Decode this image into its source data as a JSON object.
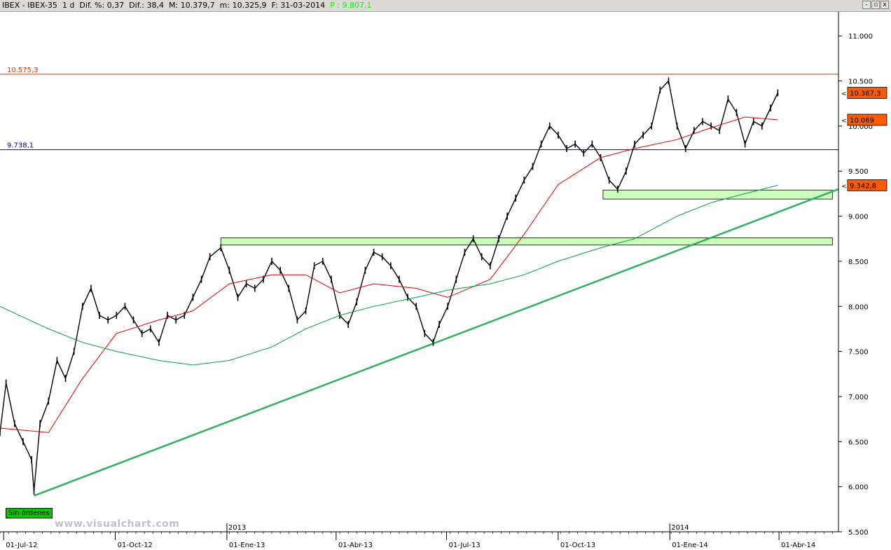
{
  "header": {
    "symbol": "IBEX - IBEX-35",
    "period": "1 d",
    "dif_pct": "Dif. %: 0,37",
    "dif": "Dif.: 38,4",
    "max": "M: 10.379,7",
    "min": "m: 10.325,9",
    "date": "F: 31-03-2014",
    "p": "P : 9.807,1",
    "buttons": [
      "-",
      "▫",
      "x"
    ]
  },
  "badge": "Sin órdenes",
  "watermark": "www.visualchart.com",
  "colors": {
    "resistance": "#e03000",
    "support": "#000080",
    "ma_short": "#e00000",
    "ma_long": "#00a040",
    "trendline": "#30b060",
    "zone_fill": "#ccffbb",
    "price_box": "#ff5a00"
  },
  "chart_data": {
    "type": "line",
    "title": "",
    "ylim": [
      5500,
      11250
    ],
    "y_ticks": [
      5500,
      6000,
      6500,
      7000,
      7500,
      8000,
      8500,
      9000,
      9500,
      10000,
      10500,
      11000
    ],
    "y_tick_labels": [
      "5.500",
      "6.000",
      "6.500",
      "7.000",
      "7.500",
      "8.000",
      "8.500",
      "9.000",
      "9.500",
      "10.000",
      "10.500",
      "11.000"
    ],
    "x_ticks": [
      "01-Jul-12",
      "01-Oct-12",
      "01-Ene-13",
      "01-Abr-13",
      "01-Jul-13",
      "01-Oct-13",
      "01-Ene-14",
      "01-Abr-14"
    ],
    "x_dates": [
      "2012-07-01",
      "2012-10-01",
      "2013-01-01",
      "2013-04-01",
      "2013-07-01",
      "2013-10-01",
      "2014-01-01",
      "2014-04-01"
    ],
    "year_labels": [
      "2013",
      "2014"
    ],
    "x_range": [
      "2012-06-28",
      "2014-05-20"
    ],
    "grid": false,
    "horizontal_lines": [
      {
        "label": "10.575,3",
        "value": 10575.3
      },
      {
        "label": "9.738,1",
        "value": 9738.1
      }
    ],
    "price_tags": [
      {
        "label": "10.367,3",
        "value": 10367.3
      },
      {
        "label": "10.069",
        "value": 10069
      },
      {
        "label": "9.342,8",
        "value": 9342.8
      }
    ],
    "zones": [
      {
        "start": "2012-12-27",
        "end": "2014-05-15",
        "low": 8680,
        "high": 8760
      },
      {
        "start": "2013-11-07",
        "end": "2014-05-15",
        "low": 9190,
        "high": 9290
      }
    ],
    "trendline": {
      "points": [
        [
          "2012-07-26",
          5900
        ],
        [
          "2014-05-20",
          9300
        ]
      ]
    },
    "series": [
      {
        "role": "price",
        "x": [
          "2012-06-28",
          "2012-07-03",
          "2012-07-10",
          "2012-07-17",
          "2012-07-24",
          "2012-07-26",
          "2012-07-31",
          "2012-08-07",
          "2012-08-14",
          "2012-08-21",
          "2012-08-28",
          "2012-09-04",
          "2012-09-11",
          "2012-09-18",
          "2012-09-25",
          "2012-10-02",
          "2012-10-09",
          "2012-10-16",
          "2012-10-23",
          "2012-10-30",
          "2012-11-06",
          "2012-11-13",
          "2012-11-20",
          "2012-11-27",
          "2012-12-04",
          "2012-12-11",
          "2012-12-18",
          "2012-12-27",
          "2013-01-03",
          "2013-01-10",
          "2013-01-17",
          "2013-01-24",
          "2013-01-31",
          "2013-02-07",
          "2013-02-14",
          "2013-02-21",
          "2013-02-28",
          "2013-03-07",
          "2013-03-14",
          "2013-03-21",
          "2013-03-28",
          "2013-04-04",
          "2013-04-11",
          "2013-04-18",
          "2013-04-25",
          "2013-05-02",
          "2013-05-09",
          "2013-05-16",
          "2013-05-23",
          "2013-05-30",
          "2013-06-06",
          "2013-06-13",
          "2013-06-20",
          "2013-06-25",
          "2013-07-02",
          "2013-07-09",
          "2013-07-16",
          "2013-07-23",
          "2013-07-30",
          "2013-08-06",
          "2013-08-13",
          "2013-08-20",
          "2013-08-27",
          "2013-09-03",
          "2013-09-10",
          "2013-09-17",
          "2013-09-24",
          "2013-10-01",
          "2013-10-08",
          "2013-10-15",
          "2013-10-22",
          "2013-10-29",
          "2013-11-05",
          "2013-11-12",
          "2013-11-19",
          "2013-11-26",
          "2013-12-03",
          "2013-12-10",
          "2013-12-17",
          "2013-12-24",
          "2013-12-31",
          "2014-01-07",
          "2014-01-14",
          "2014-01-21",
          "2014-01-28",
          "2014-02-04",
          "2014-02-11",
          "2014-02-18",
          "2014-02-25",
          "2014-03-04",
          "2014-03-11",
          "2014-03-18",
          "2014-03-25",
          "2014-03-31"
        ],
        "values": [
          6600,
          7150,
          6700,
          6500,
          6300,
          5950,
          6700,
          6950,
          7400,
          7200,
          7500,
          8000,
          8200,
          7900,
          7850,
          7900,
          8000,
          7850,
          7700,
          7750,
          7600,
          7900,
          7850,
          7900,
          8100,
          8300,
          8550,
          8650,
          8400,
          8100,
          8250,
          8200,
          8300,
          8500,
          8400,
          8200,
          7850,
          7950,
          8450,
          8500,
          8300,
          7900,
          7800,
          8050,
          8400,
          8600,
          8550,
          8450,
          8300,
          8100,
          8000,
          7700,
          7600,
          7800,
          8000,
          8300,
          8600,
          8750,
          8550,
          8450,
          8750,
          9000,
          9200,
          9400,
          9550,
          9800,
          10000,
          9900,
          9750,
          9800,
          9700,
          9800,
          9650,
          9400,
          9300,
          9500,
          9800,
          9900,
          10000,
          10400,
          10500,
          10000,
          9750,
          9950,
          10050,
          10000,
          9950,
          10300,
          10150,
          9800,
          10050,
          10000,
          10200,
          10367
        ]
      },
      {
        "role": "ma_short",
        "x": [
          "2012-06-28",
          "2012-08-07",
          "2012-09-04",
          "2012-10-02",
          "2012-11-06",
          "2012-12-04",
          "2013-01-03",
          "2013-02-07",
          "2013-03-07",
          "2013-04-04",
          "2013-05-02",
          "2013-06-06",
          "2013-07-02",
          "2013-08-06",
          "2013-09-03",
          "2013-10-01",
          "2013-11-05",
          "2013-12-03",
          "2014-01-07",
          "2014-02-04",
          "2014-03-04",
          "2014-03-31"
        ],
        "values": [
          6650,
          6600,
          7200,
          7700,
          7850,
          7950,
          8250,
          8350,
          8350,
          8150,
          8250,
          8200,
          8100,
          8300,
          8800,
          9350,
          9650,
          9750,
          9850,
          9980,
          10100,
          10069
        ]
      },
      {
        "role": "ma_long",
        "x": [
          "2012-06-28",
          "2012-08-07",
          "2012-09-04",
          "2012-10-02",
          "2012-11-06",
          "2012-12-04",
          "2013-01-03",
          "2013-02-07",
          "2013-03-07",
          "2013-04-04",
          "2013-05-02",
          "2013-06-06",
          "2013-07-02",
          "2013-08-06",
          "2013-09-03",
          "2013-10-01",
          "2013-11-05",
          "2013-12-03",
          "2014-01-07",
          "2014-02-04",
          "2014-03-04",
          "2014-03-31"
        ],
        "values": [
          8000,
          7750,
          7600,
          7500,
          7400,
          7350,
          7400,
          7550,
          7750,
          7900,
          8000,
          8100,
          8180,
          8250,
          8350,
          8500,
          8650,
          8750,
          9000,
          9150,
          9250,
          9343
        ]
      }
    ]
  }
}
